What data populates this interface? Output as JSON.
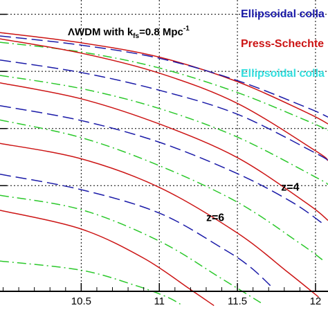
{
  "chart_data": {
    "type": "line",
    "title": "",
    "xlabel": "",
    "ylabel": "",
    "xlim": [
      9.98,
      12.08
    ],
    "ylim": [
      -0.85,
      4.25
    ],
    "grid": true,
    "x_ticks": [
      10.5,
      11,
      11.5,
      12
    ],
    "x_tick_labels": [
      "10.5",
      "11",
      "11.5",
      "12"
    ],
    "y_grid": [
      1,
      2,
      3,
      4
    ],
    "legend_position": "top-right",
    "legend": [
      {
        "label": "Ellipsoidal colla",
        "color": "#1a1aa8",
        "style": "dashed"
      },
      {
        "label": "Press-Schechte",
        "color": "#cc1414",
        "style": "solid"
      },
      {
        "label": "Ellipsoidal colla",
        "color": "#33dede",
        "style": "dashdot"
      }
    ],
    "annotation_model": {
      "prefix": "ΛWDM with k",
      "subscript": "fs",
      "middle": "=0.8 Mpc",
      "superscript": "-1"
    },
    "redshift_labels": [
      {
        "text": "z=4",
        "x": 11.78,
        "y": 0.91
      },
      {
        "text": "z=6",
        "x": 11.3,
        "y": 0.38
      }
    ],
    "series": [
      {
        "style": "solid",
        "color": "#cc1414",
        "x": [
          9.98,
          10.5,
          11.0,
          11.5,
          11.95,
          12.08
        ],
        "y": [
          3.68,
          3.5,
          3.25,
          2.82,
          2.27,
          2.08
        ]
      },
      {
        "style": "dashed",
        "color": "#1a1aa8",
        "x": [
          9.98,
          10.5,
          11.0,
          11.5,
          11.95,
          12.08
        ],
        "y": [
          3.62,
          3.46,
          3.23,
          2.84,
          2.36,
          2.2
        ]
      },
      {
        "style": "dashdot",
        "color": "#2ac82a",
        "x": [
          9.98,
          10.5,
          11.0,
          11.5,
          11.95,
          12.08
        ],
        "y": [
          3.51,
          3.34,
          3.06,
          2.63,
          2.13,
          1.97
        ]
      },
      {
        "style": "solid",
        "color": "#cc1414",
        "x": [
          9.98,
          10.5,
          11.0,
          11.5,
          12.0,
          12.08
        ],
        "y": [
          3.57,
          3.32,
          2.97,
          2.44,
          1.61,
          1.44
        ]
      },
      {
        "style": "dashed",
        "color": "#1a1aa8",
        "x": [
          9.98,
          10.5,
          11.0,
          11.5,
          12.0,
          12.08
        ],
        "y": [
          3.2,
          2.98,
          2.67,
          2.25,
          1.57,
          1.44
        ]
      },
      {
        "style": "dashdot",
        "color": "#2ac82a",
        "x": [
          9.98,
          10.5,
          11.0,
          11.5,
          12.0,
          12.08
        ],
        "y": [
          2.93,
          2.7,
          2.35,
          1.85,
          1.15,
          1.02
        ]
      },
      {
        "style": "solid",
        "color": "#cc1414",
        "x": [
          9.98,
          10.5,
          11.0,
          11.5,
          11.95,
          12.08
        ],
        "y": [
          2.8,
          2.52,
          2.08,
          1.49,
          0.68,
          0.39
        ]
      },
      {
        "style": "dashed",
        "color": "#1a1aa8",
        "x": [
          9.98,
          10.5,
          11.0,
          11.5,
          11.85,
          12.05
        ],
        "y": [
          2.4,
          2.14,
          1.76,
          1.21,
          0.71,
          0.33
        ]
      },
      {
        "style": "dashdot",
        "color": "#2ac82a",
        "x": [
          9.98,
          10.5,
          11.0,
          11.5,
          11.9,
          12.05
        ],
        "y": [
          2.15,
          1.84,
          1.35,
          0.71,
          -0.01,
          -0.31
        ]
      },
      {
        "style": "solid",
        "color": "#cc1414",
        "x": [
          9.98,
          10.5,
          11.0,
          11.5,
          11.82,
          12.02
        ],
        "y": [
          1.74,
          1.47,
          0.97,
          0.17,
          -0.51,
          -0.95
        ]
      },
      {
        "style": "dashed",
        "color": "#1a1aa8",
        "x": [
          9.98,
          10.5,
          11.0,
          11.4,
          11.58,
          11.73
        ],
        "y": [
          1.2,
          0.93,
          0.52,
          -0.09,
          -0.42,
          -0.8
        ]
      },
      {
        "style": "dashdot",
        "color": "#2ac82a",
        "x": [
          9.98,
          10.5,
          11.0,
          11.4,
          11.65
        ],
        "y": [
          0.83,
          0.58,
          0.03,
          -0.63,
          -1.05
        ]
      },
      {
        "style": "solid",
        "color": "#cc1414",
        "x": [
          9.98,
          10.5,
          10.9,
          11.2,
          11.35
        ],
        "y": [
          0.57,
          0.24,
          -0.27,
          -0.82,
          -1.1
        ]
      },
      {
        "style": "dashdot",
        "color": "#2ac82a",
        "x": [
          9.98,
          10.5,
          10.85,
          11.05,
          11.15
        ],
        "y": [
          -0.32,
          -0.48,
          -0.75,
          -0.95,
          -1.1
        ]
      }
    ]
  }
}
